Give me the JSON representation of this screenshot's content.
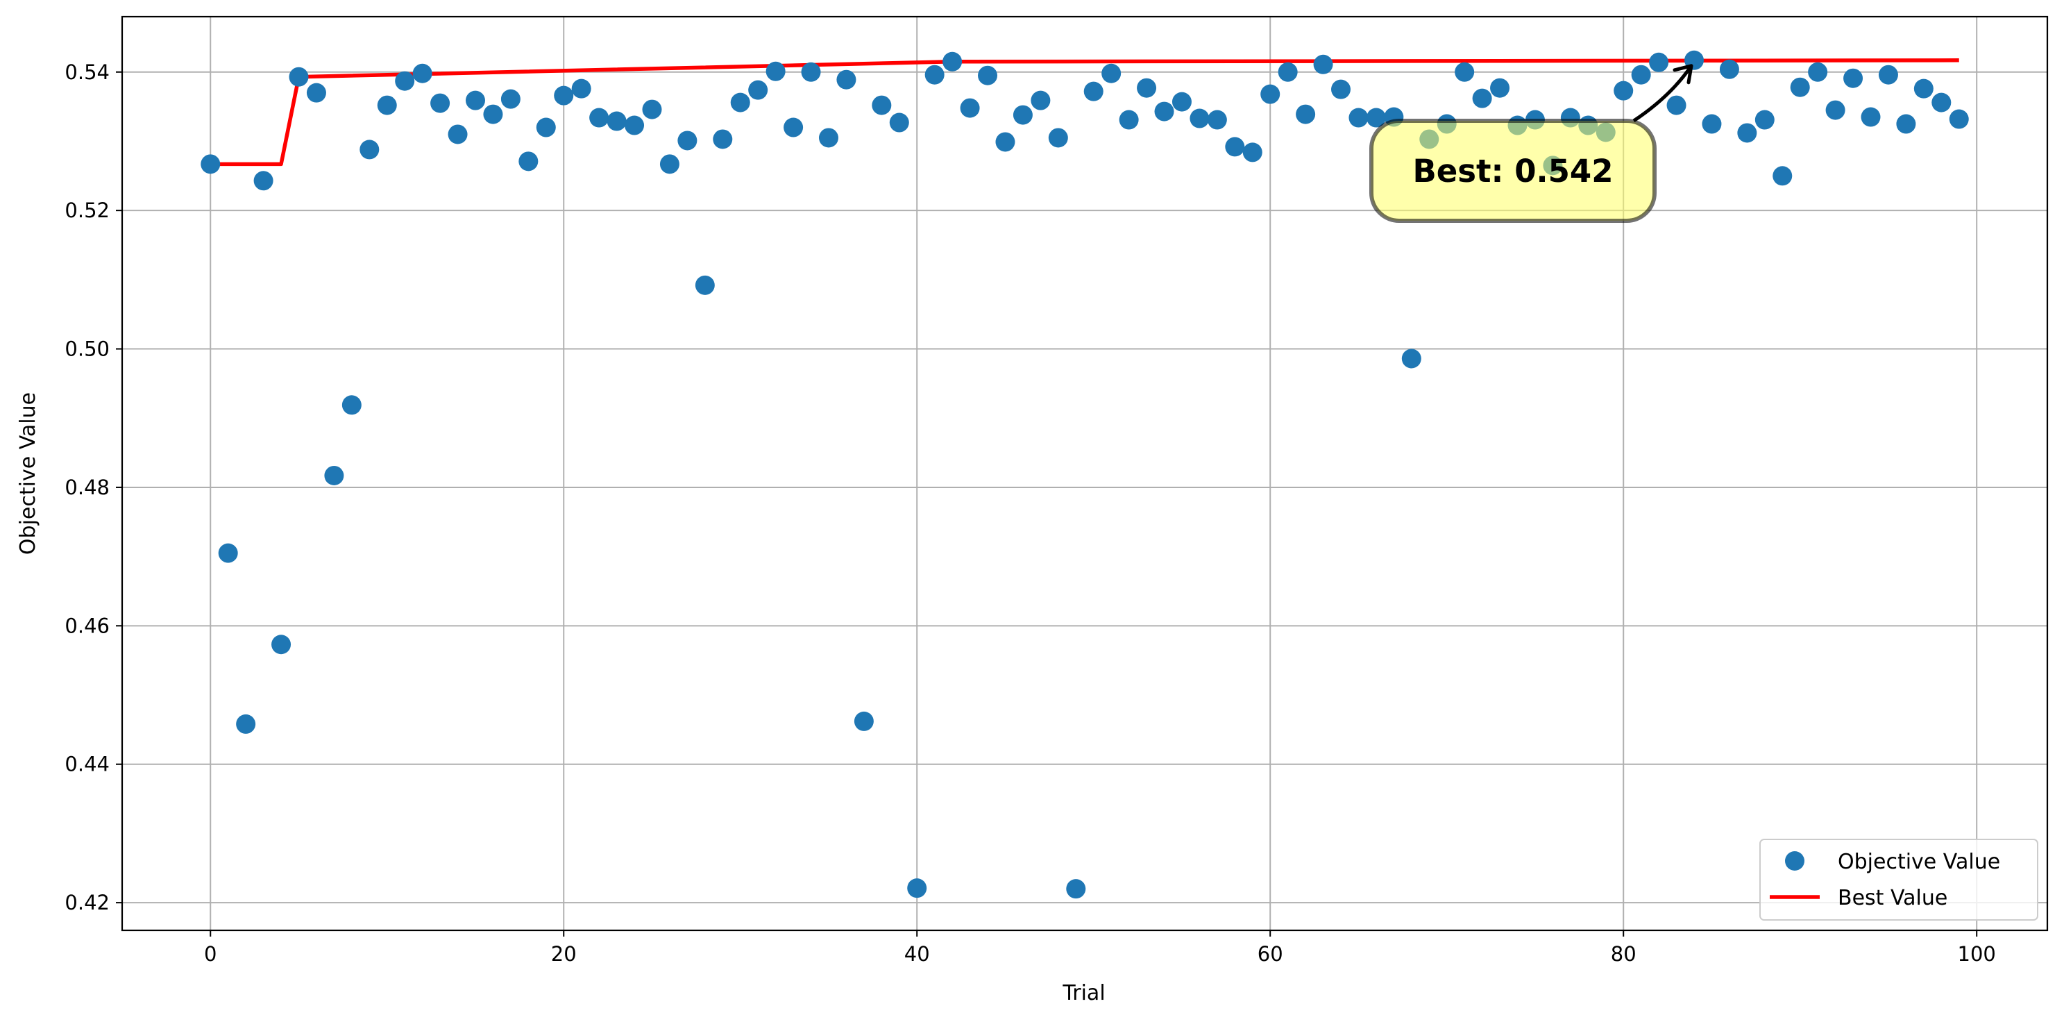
{
  "chart_data": {
    "type": "scatter",
    "title": "",
    "xlabel": "Trial",
    "ylabel": "Objective Value",
    "xlim": [
      -5,
      104
    ],
    "ylim": [
      0.416,
      0.548
    ],
    "xticks": [
      0,
      20,
      40,
      60,
      80,
      100
    ],
    "yticks": [
      0.42,
      0.44,
      0.46,
      0.48,
      0.5,
      0.52,
      0.54
    ],
    "ytick_labels": [
      "0.42",
      "0.44",
      "0.46",
      "0.48",
      "0.50",
      "0.52",
      "0.54"
    ],
    "grid": true,
    "legend_position": "bottom-right",
    "series": [
      {
        "name": "Objective Value",
        "kind": "scatter",
        "color": "#1f77b4",
        "x": [
          0,
          1,
          2,
          3,
          4,
          5,
          6,
          7,
          8,
          9,
          10,
          11,
          12,
          13,
          14,
          15,
          16,
          17,
          18,
          19,
          20,
          21,
          22,
          23,
          24,
          25,
          26,
          27,
          28,
          29,
          30,
          31,
          32,
          33,
          34,
          35,
          36,
          37,
          38,
          39,
          40,
          41,
          42,
          43,
          44,
          45,
          46,
          47,
          48,
          49,
          50,
          51,
          52,
          53,
          54,
          55,
          56,
          57,
          58,
          59,
          60,
          61,
          62,
          63,
          64,
          65,
          66,
          67,
          68,
          69,
          70,
          71,
          72,
          73,
          74,
          75,
          76,
          77,
          78,
          79,
          80,
          81,
          82,
          83,
          84,
          85,
          86,
          87,
          88,
          89,
          90,
          91,
          92,
          93,
          94,
          95,
          96,
          97,
          98,
          99
        ],
        "y": [
          0.5267,
          0.4705,
          0.4458,
          0.5243,
          0.4573,
          0.5393,
          0.537,
          0.4817,
          0.4919,
          0.5288,
          0.5352,
          0.5387,
          0.5398,
          0.5355,
          0.531,
          0.5359,
          0.5339,
          0.5361,
          0.5271,
          0.532,
          0.5366,
          0.5376,
          0.5334,
          0.5329,
          0.5323,
          0.5346,
          0.5267,
          0.5301,
          0.5092,
          0.5303,
          0.5356,
          0.5374,
          0.5401,
          0.532,
          0.54,
          0.5305,
          0.5389,
          0.4462,
          0.5352,
          0.5327,
          0.4221,
          0.5396,
          0.5415,
          0.5348,
          0.5395,
          0.5299,
          0.5338,
          0.5359,
          0.5305,
          0.422,
          0.5372,
          0.5398,
          0.5331,
          0.5377,
          0.5343,
          0.5357,
          0.5333,
          0.5331,
          0.5292,
          0.5284,
          0.5368,
          0.54,
          0.5339,
          0.5411,
          0.5375,
          0.5334,
          0.5334,
          0.5335,
          0.4986,
          0.5303,
          0.5325,
          0.54,
          0.5362,
          0.5377,
          0.5323,
          0.5331,
          0.5265,
          0.5334,
          0.5323,
          0.5313,
          0.5373,
          0.5396,
          0.5414,
          0.5352,
          0.5417,
          0.5325,
          0.5404,
          0.5312,
          0.5331,
          0.525,
          0.5378,
          0.54,
          0.5345,
          0.5391,
          0.5335,
          0.5396,
          0.5325,
          0.5376,
          0.5356,
          0.5332
        ]
      },
      {
        "name": "Best Value",
        "kind": "step-line",
        "color": "#ff0000",
        "x": [
          0,
          4,
          5,
          42,
          99
        ],
        "y": [
          0.5267,
          0.5267,
          0.5393,
          0.5415,
          0.5417
        ]
      }
    ],
    "annotation": {
      "text": "Best: 0.542",
      "x": 84,
      "y": 0.5417,
      "box_color": "#ffff66"
    }
  }
}
